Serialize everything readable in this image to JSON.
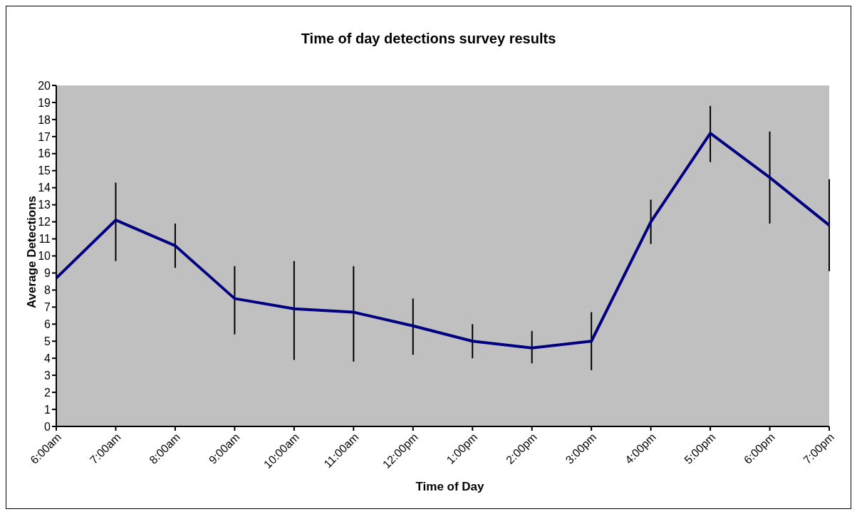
{
  "chart_data": {
    "type": "line",
    "title": "Time of day detections survey results",
    "xlabel": "Time of Day",
    "ylabel": "Average Detections",
    "categories": [
      "6:00am",
      "7:00am",
      "8:00am",
      "9:00am",
      "10:00am",
      "11:00am",
      "12:00pm",
      "1:00pm",
      "2:00pm",
      "3:00pm",
      "4:00pm",
      "5:00pm",
      "6:00pm",
      "7:00pm"
    ],
    "series": [
      {
        "color": "#000080",
        "values": [
          8.7,
          12.1,
          10.6,
          7.5,
          6.9,
          6.7,
          5.9,
          5.0,
          4.6,
          5.0,
          12.0,
          17.2,
          14.6,
          11.8
        ],
        "errors": [
          [
            5.6,
            11.6
          ],
          [
            9.7,
            14.3
          ],
          [
            9.3,
            11.9
          ],
          [
            5.4,
            9.4
          ],
          [
            3.9,
            9.7
          ],
          [
            3.8,
            9.4
          ],
          [
            4.2,
            7.5
          ],
          [
            4.0,
            6.0
          ],
          [
            3.7,
            5.6
          ],
          [
            3.3,
            6.7
          ],
          [
            10.7,
            13.3
          ],
          [
            15.5,
            18.8
          ],
          [
            11.9,
            17.3
          ],
          [
            9.1,
            14.5
          ]
        ]
      }
    ],
    "ylim": [
      0,
      20
    ],
    "yticks": [
      0,
      1,
      2,
      3,
      4,
      5,
      6,
      7,
      8,
      9,
      10,
      11,
      12,
      13,
      14,
      15,
      16,
      17,
      18,
      19,
      20
    ],
    "grid": false,
    "legend": false,
    "marker": "none",
    "line_style": "solid"
  }
}
